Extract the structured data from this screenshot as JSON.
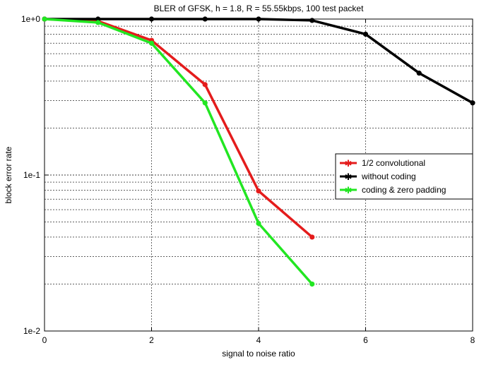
{
  "chart_data": {
    "type": "line",
    "title": "BLER of GFSK, h = 1.8, R = 55.55kbps, 100 test packet",
    "xlabel": "signal to noise ratio",
    "ylabel": "block error rate",
    "xlim": [
      0,
      8
    ],
    "ylim": [
      0.01,
      1
    ],
    "yscale": "log",
    "grid": true,
    "legend_position": "right",
    "x_ticks": [
      0,
      2,
      4,
      6,
      8
    ],
    "x_tick_labels": [
      "0",
      "2",
      "4",
      "6",
      "8"
    ],
    "y_ticks": [
      1,
      0.1,
      0.01
    ],
    "y_tick_labels": [
      "1e+0",
      "1e-1",
      "1e-2"
    ],
    "series": [
      {
        "name": "1/2 convolutional",
        "color": "#e41c1c",
        "x": [
          0,
          1,
          2,
          3,
          4,
          5
        ],
        "y": [
          1.0,
          0.97,
          0.73,
          0.38,
          0.079,
          0.04
        ]
      },
      {
        "name": "without coding",
        "color": "#000000",
        "x": [
          0,
          1,
          2,
          3,
          4,
          5,
          6,
          7,
          8
        ],
        "y": [
          1.0,
          1.0,
          1.0,
          1.0,
          1.0,
          0.98,
          0.8,
          0.45,
          0.29
        ]
      },
      {
        "name": "coding & zero padding",
        "color": "#22e622",
        "x": [
          0,
          1,
          2,
          3,
          4,
          5
        ],
        "y": [
          1.0,
          0.95,
          0.7,
          0.29,
          0.049,
          0.02
        ]
      }
    ]
  }
}
